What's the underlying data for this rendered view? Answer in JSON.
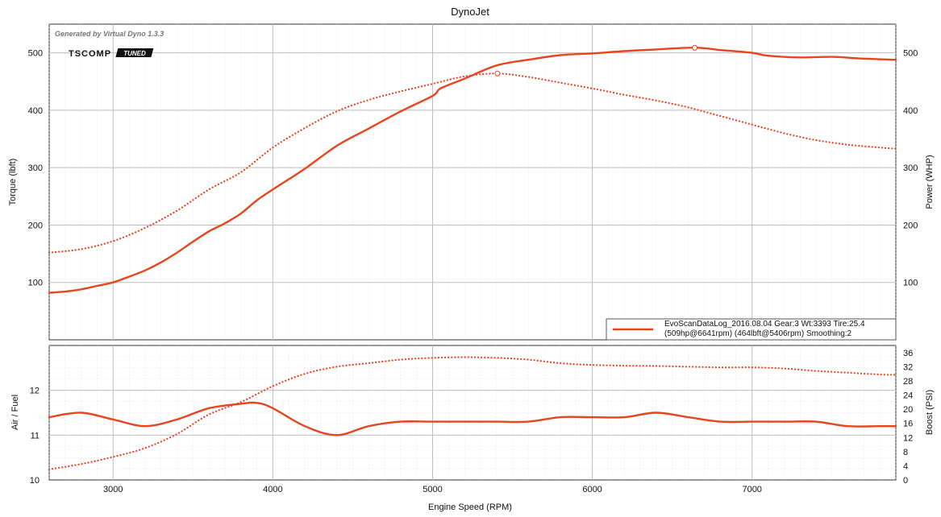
{
  "chart_data": {
    "title": "DynoJet",
    "generated_by": "Generated by Virtual Dyno 1.3.3",
    "logo": {
      "brand": "TSCOMP",
      "tag": "TUNED"
    },
    "xlabel": "Engine Speed (RPM)",
    "xlim": [
      2600,
      7900
    ],
    "xticks": [
      3000,
      4000,
      5000,
      6000,
      7000
    ],
    "colors": {
      "series": "#e8441e",
      "grid_major": "#bdbdbd",
      "grid_minor": "#d8d8d8"
    },
    "legend": {
      "line1": "EvoScanDataLog_2016.08.04 Gear:3 Wt:3393 Tire:25.4",
      "line2": "(509hp@6641rpm) (464lbft@5406rpm) Smoothing:2"
    },
    "top_panel": {
      "type": "line",
      "ylabel_left": "Torque (lbft)",
      "ylabel_right": "Power (WHP)",
      "ylim": [
        0,
        550
      ],
      "yticks": [
        100,
        200,
        300,
        400,
        500
      ],
      "series": [
        {
          "name": "Power (WHP)",
          "style": "solid",
          "x": [
            2600,
            2700,
            2800,
            2900,
            3000,
            3100,
            3200,
            3300,
            3400,
            3500,
            3600,
            3700,
            3800,
            3900,
            4000,
            4200,
            4400,
            4600,
            4800,
            5000,
            5050,
            5200,
            5400,
            5600,
            5800,
            6000,
            6200,
            6400,
            6641,
            6800,
            7000,
            7100,
            7300,
            7500,
            7700,
            7900
          ],
          "y": [
            82,
            84,
            88,
            94,
            100,
            110,
            121,
            135,
            152,
            171,
            189,
            203,
            220,
            243,
            262,
            298,
            338,
            368,
            398,
            425,
            438,
            455,
            478,
            488,
            496,
            499,
            503,
            506,
            509,
            505,
            500,
            495,
            492,
            493,
            490,
            488
          ]
        },
        {
          "name": "Torque (lbft)",
          "style": "dotted",
          "x": [
            2600,
            2800,
            3000,
            3200,
            3400,
            3600,
            3800,
            4000,
            4200,
            4400,
            4600,
            4800,
            5000,
            5200,
            5406,
            5600,
            5800,
            6000,
            6200,
            6400,
            6600,
            6800,
            7000,
            7200,
            7400,
            7600,
            7800,
            7900
          ],
          "y": [
            152,
            158,
            172,
            195,
            225,
            262,
            292,
            335,
            369,
            398,
            418,
            433,
            446,
            459,
            464,
            458,
            448,
            438,
            427,
            417,
            405,
            390,
            375,
            360,
            348,
            340,
            335,
            333
          ]
        }
      ],
      "markers": [
        {
          "x": 6641,
          "y": 509
        },
        {
          "x": 5406,
          "y": 464
        }
      ]
    },
    "bottom_panel": {
      "type": "line",
      "ylabel_left": "Air / Fuel",
      "ylabel_right": "Boost (PSI)",
      "ylim_left": [
        10,
        13
      ],
      "yticks_left": [
        10,
        11,
        12
      ],
      "ylim_right": [
        0,
        38
      ],
      "yticks_right": [
        0,
        4,
        8,
        12,
        16,
        20,
        24,
        28,
        32,
        36
      ],
      "series": [
        {
          "name": "Air / Fuel",
          "style": "solid",
          "axis": "left",
          "x": [
            2600,
            2800,
            3000,
            3200,
            3400,
            3600,
            3800,
            3900,
            4000,
            4200,
            4400,
            4600,
            4800,
            5000,
            5200,
            5400,
            5600,
            5800,
            6000,
            6200,
            6400,
            6600,
            6800,
            7000,
            7200,
            7400,
            7600,
            7800,
            7900
          ],
          "y": [
            11.4,
            11.5,
            11.35,
            11.2,
            11.35,
            11.6,
            11.7,
            11.72,
            11.6,
            11.2,
            11.0,
            11.2,
            11.3,
            11.3,
            11.3,
            11.3,
            11.3,
            11.4,
            11.4,
            11.4,
            11.5,
            11.4,
            11.3,
            11.3,
            11.3,
            11.3,
            11.2,
            11.2,
            11.2
          ]
        },
        {
          "name": "Boost (PSI)",
          "style": "dotted",
          "axis": "right",
          "x": [
            2600,
            2800,
            3000,
            3200,
            3400,
            3600,
            3800,
            4000,
            4200,
            4400,
            4600,
            4800,
            5000,
            5200,
            5400,
            5600,
            5800,
            6000,
            6200,
            6400,
            6600,
            6800,
            7000,
            7200,
            7400,
            7600,
            7800,
            7900
          ],
          "y": [
            3,
            4.5,
            6.5,
            9,
            13,
            18.5,
            22,
            26.5,
            30,
            32,
            33,
            34,
            34.5,
            34.7,
            34.5,
            34,
            33,
            32.5,
            32.3,
            32.2,
            32,
            31.8,
            31.8,
            31.5,
            30.8,
            30.3,
            29.8,
            29.7
          ]
        }
      ]
    }
  }
}
